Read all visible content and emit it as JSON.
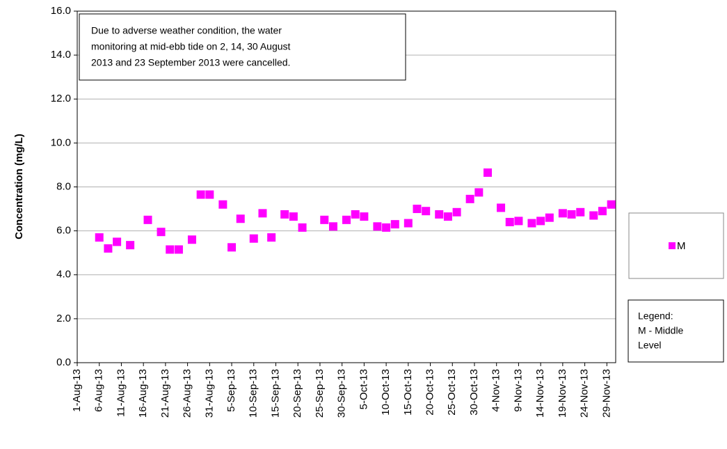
{
  "chart_data": {
    "type": "scatter",
    "ylabel": "Concentration (mg/L)",
    "annotation": [
      "Due  to adverse weather condition, the  water",
      "monitoring at mid-ebb tide on 2, 14, 30 August",
      "2013 and 23 September 2013 were cancelled."
    ],
    "legend_note": [
      "Legend:",
      "M - Middle",
      "Level"
    ],
    "ylim": [
      0,
      16
    ],
    "yticks": [
      {
        "value": 0,
        "label": "0.0"
      },
      {
        "value": 2,
        "label": "2.0"
      },
      {
        "value": 4,
        "label": "4.0"
      },
      {
        "value": 6,
        "label": "6.0"
      },
      {
        "value": 8,
        "label": "8.0"
      },
      {
        "value": 10,
        "label": "10.0"
      },
      {
        "value": 12,
        "label": "12.0"
      },
      {
        "value": 14,
        "label": "14.0"
      },
      {
        "value": 16,
        "label": "16.0"
      }
    ],
    "xlim": [
      "2013-08-01",
      "2013-12-01"
    ],
    "xticks": [
      {
        "value": "2013-08-01",
        "label": "1-Aug-13"
      },
      {
        "value": "2013-08-06",
        "label": "6-Aug-13"
      },
      {
        "value": "2013-08-11",
        "label": "11-Aug-13"
      },
      {
        "value": "2013-08-16",
        "label": "16-Aug-13"
      },
      {
        "value": "2013-08-21",
        "label": "21-Aug-13"
      },
      {
        "value": "2013-08-26",
        "label": "26-Aug-13"
      },
      {
        "value": "2013-08-31",
        "label": "31-Aug-13"
      },
      {
        "value": "2013-09-05",
        "label": "5-Sep-13"
      },
      {
        "value": "2013-09-10",
        "label": "10-Sep-13"
      },
      {
        "value": "2013-09-15",
        "label": "15-Sep-13"
      },
      {
        "value": "2013-09-20",
        "label": "20-Sep-13"
      },
      {
        "value": "2013-09-25",
        "label": "25-Sep-13"
      },
      {
        "value": "2013-09-30",
        "label": "30-Sep-13"
      },
      {
        "value": "2013-10-05",
        "label": "5-Oct-13"
      },
      {
        "value": "2013-10-10",
        "label": "10-Oct-13"
      },
      {
        "value": "2013-10-15",
        "label": "15-Oct-13"
      },
      {
        "value": "2013-10-20",
        "label": "20-Oct-13"
      },
      {
        "value": "2013-10-25",
        "label": "25-Oct-13"
      },
      {
        "value": "2013-10-30",
        "label": "30-Oct-13"
      },
      {
        "value": "2013-11-04",
        "label": "4-Nov-13"
      },
      {
        "value": "2013-11-09",
        "label": "9-Nov-13"
      },
      {
        "value": "2013-11-14",
        "label": "14-Nov-13"
      },
      {
        "value": "2013-11-19",
        "label": "19-Nov-13"
      },
      {
        "value": "2013-11-24",
        "label": "24-Nov-13"
      },
      {
        "value": "2013-11-29",
        "label": "29-Nov-13"
      }
    ],
    "grid": true,
    "series": [
      {
        "name": "M",
        "color": "#ff00ff",
        "x": [
          "2013-08-06",
          "2013-08-08",
          "2013-08-10",
          "2013-08-13",
          "2013-08-17",
          "2013-08-20",
          "2013-08-22",
          "2013-08-24",
          "2013-08-27",
          "2013-08-29",
          "2013-08-31",
          "2013-09-03",
          "2013-09-05",
          "2013-09-07",
          "2013-09-10",
          "2013-09-12",
          "2013-09-14",
          "2013-09-17",
          "2013-09-19",
          "2013-09-21",
          "2013-09-26",
          "2013-09-28",
          "2013-10-01",
          "2013-10-03",
          "2013-10-05",
          "2013-10-08",
          "2013-10-10",
          "2013-10-12",
          "2013-10-15",
          "2013-10-17",
          "2013-10-19",
          "2013-10-22",
          "2013-10-24",
          "2013-10-26",
          "2013-10-29",
          "2013-10-31",
          "2013-11-02",
          "2013-11-05",
          "2013-11-07",
          "2013-11-09",
          "2013-11-12",
          "2013-11-14",
          "2013-11-16",
          "2013-11-19",
          "2013-11-21",
          "2013-11-23",
          "2013-11-26",
          "2013-11-28",
          "2013-11-30"
        ],
        "values": [
          5.7,
          5.2,
          5.5,
          5.35,
          6.5,
          5.95,
          5.15,
          5.15,
          5.6,
          7.65,
          7.65,
          7.2,
          5.25,
          6.55,
          5.65,
          6.8,
          5.7,
          6.75,
          6.65,
          6.15,
          6.5,
          6.2,
          6.5,
          6.75,
          6.65,
          6.2,
          6.15,
          6.3,
          6.35,
          7.0,
          6.9,
          6.75,
          6.65,
          6.85,
          7.45,
          7.75,
          8.65,
          7.05,
          6.4,
          6.45,
          6.35,
          6.45,
          6.6,
          6.8,
          6.75,
          6.85,
          6.7,
          6.9,
          7.2
        ]
      }
    ]
  }
}
